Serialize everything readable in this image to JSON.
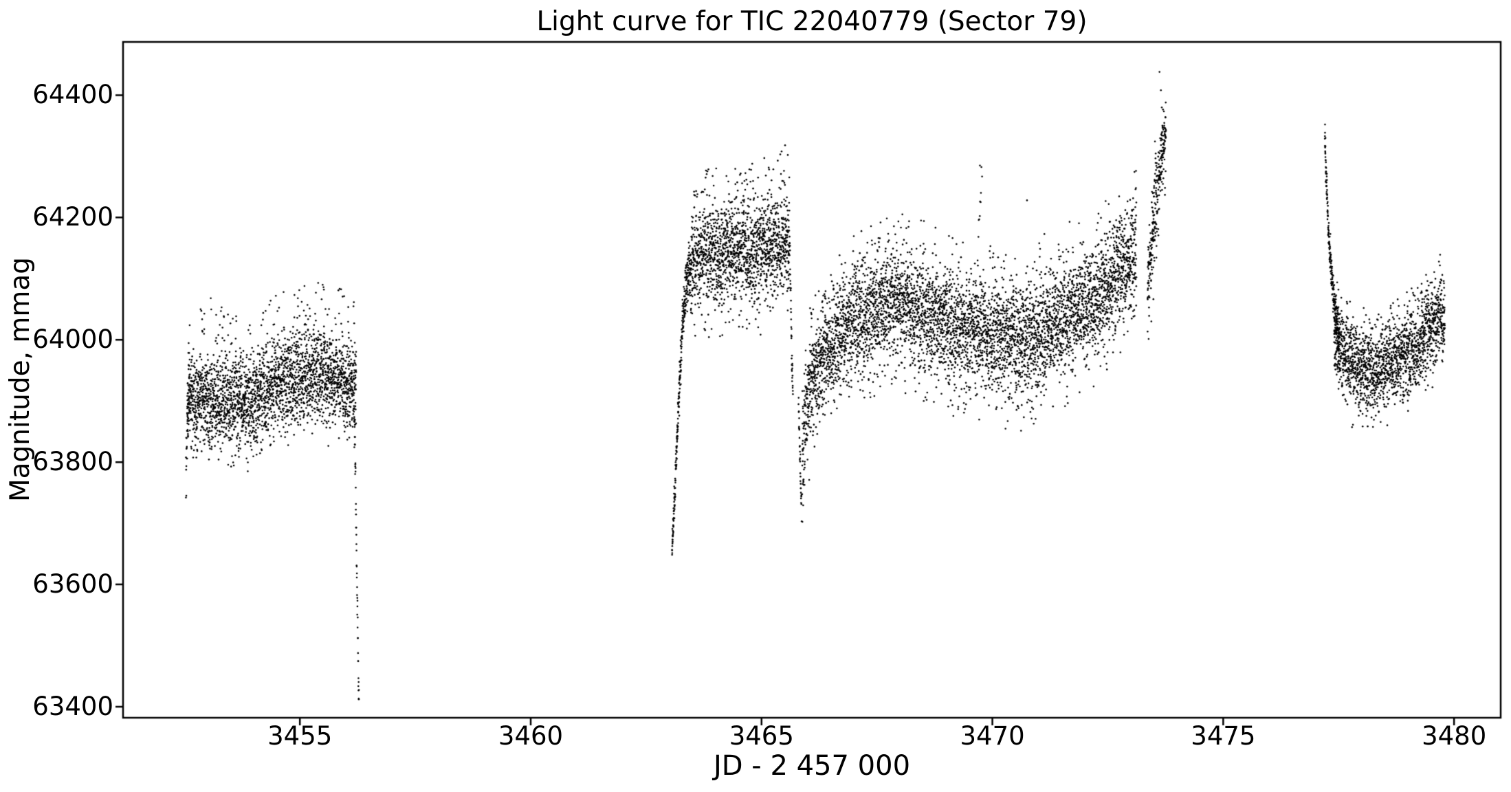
{
  "figure": {
    "background": "#ffffff",
    "text_color": "#000000"
  },
  "chart_data": {
    "type": "scatter",
    "title": "Light curve for TIC 22040779 (Sector 79)",
    "xlabel": "JD - 2 457 000",
    "ylabel": "Magnitude, mmag",
    "xlim": [
      3451.17,
      3481.01
    ],
    "ylim": [
      63382,
      64487
    ],
    "xticks": [
      3455,
      3460,
      3465,
      3470,
      3475,
      3480
    ],
    "yticks": [
      63400,
      63600,
      63800,
      64000,
      64200,
      64400
    ],
    "grid": false,
    "legend": null,
    "marker": {
      "color": "#000000",
      "radius_px": 1.3
    },
    "frame_color": "#000000",
    "seed": 20407,
    "segments": [
      {
        "name": "start-tail",
        "t": [
          3452.53,
          3452.61
        ],
        "rate": 420,
        "kf": [
          [
            3452.53,
            63790
          ],
          [
            3452.56,
            63860
          ],
          [
            3452.59,
            63905
          ],
          [
            3452.61,
            63915
          ]
        ],
        "sigma": [
          20,
          32
        ]
      },
      {
        "name": "band-1",
        "t": [
          3452.56,
          3456.22
        ],
        "rate": 720,
        "kf": [
          [
            3452.56,
            63895
          ],
          [
            3453.0,
            63905
          ],
          [
            3453.5,
            63902
          ],
          [
            3453.9,
            63898
          ],
          [
            3454.2,
            63915
          ],
          [
            3454.6,
            63935
          ],
          [
            3455.0,
            63940
          ],
          [
            3455.4,
            63945
          ],
          [
            3455.8,
            63935
          ],
          [
            3456.1,
            63928
          ],
          [
            3456.22,
            63935
          ]
        ],
        "sigma": 36,
        "out_up": [
          0.045,
          40,
          150
        ],
        "out_dn": [
          0.028,
          40,
          95
        ]
      },
      {
        "name": "deep-dip",
        "t": [
          3456.17,
          3456.28
        ],
        "rate": 460,
        "kf": [
          [
            3456.17,
            63890
          ],
          [
            3456.19,
            63840
          ],
          [
            3456.21,
            63760
          ],
          [
            3456.23,
            63640
          ],
          [
            3456.25,
            63540
          ],
          [
            3456.27,
            63450
          ],
          [
            3456.28,
            63405
          ]
        ],
        "sigma": 13
      },
      {
        "name": "ramp-up",
        "t": [
          3463.06,
          3463.44
        ],
        "rate": 720,
        "kf": [
          [
            3463.06,
            63655
          ],
          [
            3463.12,
            63745
          ],
          [
            3463.18,
            63855
          ],
          [
            3463.24,
            63955
          ],
          [
            3463.3,
            64035
          ],
          [
            3463.36,
            64085
          ],
          [
            3463.44,
            64120
          ]
        ],
        "sigma": [
          9,
          26
        ]
      },
      {
        "name": "plateau",
        "t": [
          3463.44,
          3465.61
        ],
        "rate": 720,
        "kf": [
          [
            3463.44,
            64125
          ],
          [
            3463.8,
            64145
          ],
          [
            3464.1,
            64138
          ],
          [
            3464.4,
            64150
          ],
          [
            3464.7,
            64142
          ],
          [
            3465.0,
            64148
          ],
          [
            3465.3,
            64155
          ],
          [
            3465.5,
            64160
          ],
          [
            3465.61,
            64150
          ]
        ],
        "sigma": 38,
        "out_up": [
          0.05,
          40,
          150
        ],
        "out_dn": [
          0.035,
          40,
          140
        ]
      },
      {
        "name": "drop",
        "t": [
          3465.615,
          3465.68
        ],
        "rate": 520,
        "kf": [
          [
            3465.615,
            64150
          ],
          [
            3465.63,
            64075
          ],
          [
            3465.65,
            63990
          ],
          [
            3465.68,
            63908
          ]
        ],
        "sigma": 14
      },
      {
        "name": "pre-dip",
        "t": [
          3465.8,
          3465.87
        ],
        "rate": 430,
        "kf": [
          [
            3465.8,
            63900
          ],
          [
            3465.83,
            63820
          ],
          [
            3465.85,
            63760
          ],
          [
            3465.87,
            63715
          ]
        ],
        "sigma": 12
      },
      {
        "name": "band-2",
        "t": [
          3465.88,
          3473.12
        ],
        "rate": 720,
        "kf": [
          [
            3465.88,
            63790
          ],
          [
            3465.96,
            63880
          ],
          [
            3466.08,
            63935
          ],
          [
            3466.3,
            63965
          ],
          [
            3466.6,
            64005
          ],
          [
            3467.0,
            64030
          ],
          [
            3467.5,
            64048
          ],
          [
            3468.0,
            64058
          ],
          [
            3468.4,
            64048
          ],
          [
            3468.8,
            64035
          ],
          [
            3469.2,
            64022
          ],
          [
            3469.7,
            64015
          ],
          [
            3470.2,
            64005
          ],
          [
            3470.6,
            64000
          ],
          [
            3471.0,
            64010
          ],
          [
            3471.4,
            64025
          ],
          [
            3471.8,
            64042
          ],
          [
            3472.2,
            64062
          ],
          [
            3472.6,
            64090
          ],
          [
            3472.9,
            64125
          ],
          [
            3473.12,
            64148
          ]
        ],
        "sigma": 44,
        "out_up": [
          0.03,
          40,
          150
        ],
        "out_dn": [
          0.028,
          40,
          150
        ]
      },
      {
        "name": "outlier-column",
        "t": [
          3469.68,
          3469.78
        ],
        "rate": 100,
        "kf": [
          [
            3469.68,
            64140
          ],
          [
            3469.73,
            64220
          ],
          [
            3469.78,
            64285
          ]
        ],
        "sigma": 25
      },
      {
        "name": "spike-rise",
        "t": [
          3473.36,
          3473.58
        ],
        "rate": 700,
        "kf": [
          [
            3473.36,
            64080
          ],
          [
            3473.44,
            64140
          ],
          [
            3473.51,
            64210
          ],
          [
            3473.58,
            64265
          ]
        ],
        "sigma": 36,
        "out_dn": [
          0.06,
          40,
          170
        ]
      },
      {
        "name": "spike-top",
        "t": [
          3473.59,
          3473.76
        ],
        "rate": 700,
        "kf": [
          [
            3473.59,
            64255
          ],
          [
            3473.66,
            64300
          ],
          [
            3473.72,
            64330
          ],
          [
            3473.76,
            64350
          ]
        ],
        "sigma": 26,
        "out_dn": [
          0.05,
          40,
          130
        ]
      },
      {
        "name": "decay-column",
        "t": [
          3477.2,
          3477.52
        ],
        "rate": 700,
        "kf": [
          [
            3477.2,
            64330
          ],
          [
            3477.23,
            64270
          ],
          [
            3477.26,
            64215
          ],
          [
            3477.3,
            64155
          ],
          [
            3477.34,
            64110
          ],
          [
            3477.39,
            64070
          ],
          [
            3477.45,
            64035
          ],
          [
            3477.52,
            64010
          ]
        ],
        "sigma": [
          11,
          22
        ]
      },
      {
        "name": "band-3",
        "t": [
          3477.4,
          3479.8
        ],
        "rate": 720,
        "kf": [
          [
            3477.4,
            64000
          ],
          [
            3477.65,
            63972
          ],
          [
            3477.95,
            63950
          ],
          [
            3478.25,
            63944
          ],
          [
            3478.55,
            63956
          ],
          [
            3478.85,
            63968
          ],
          [
            3479.15,
            63990
          ],
          [
            3479.45,
            64015
          ],
          [
            3479.65,
            64032
          ],
          [
            3479.8,
            64042
          ]
        ],
        "sigma": 33,
        "out_up": [
          0.035,
          40,
          105
        ],
        "out_dn": [
          0.02,
          40,
          75
        ]
      }
    ],
    "extra_points": [
      [
        3452.54,
        63745
      ],
      [
        3453.07,
        64068
      ],
      [
        3454.48,
        64072
      ],
      [
        3455.1,
        64088
      ],
      [
        3455.52,
        64082
      ],
      [
        3465.51,
        64318
      ],
      [
        3469.73,
        64285
      ],
      [
        3470.75,
        64228
      ],
      [
        3473.62,
        64438
      ],
      [
        3473.65,
        64408
      ],
      [
        3473.67,
        64380
      ],
      [
        3477.205,
        64352
      ],
      [
        3477.215,
        64330
      ]
    ]
  }
}
